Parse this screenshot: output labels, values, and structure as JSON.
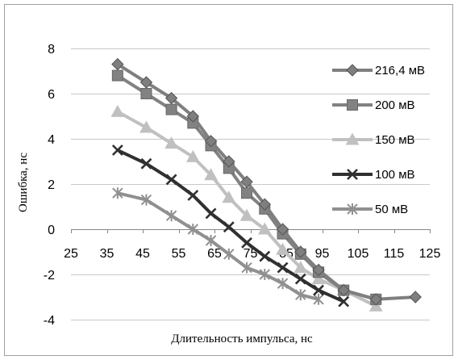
{
  "chart_data": {
    "type": "line",
    "title": "",
    "xlabel": "Длительность импульса, нс",
    "ylabel": "Ошибка, нс",
    "xlim": [
      25,
      125
    ],
    "ylim": [
      -4,
      8
    ],
    "xticks": [
      25,
      35,
      45,
      55,
      65,
      75,
      85,
      95,
      105,
      115,
      125
    ],
    "yticks": [
      -4,
      -2,
      0,
      2,
      4,
      6,
      8
    ],
    "grid": "horizontal",
    "legend": "right",
    "series": [
      {
        "name": "216,4 мВ",
        "color": "#7f7f7f",
        "marker": "diamond",
        "points": [
          [
            38,
            7.3
          ],
          [
            46,
            6.5
          ],
          [
            53,
            5.8
          ],
          [
            59,
            5.0
          ],
          [
            64,
            3.9
          ],
          [
            69,
            3.0
          ],
          [
            74,
            2.1
          ],
          [
            79,
            1.1
          ],
          [
            84,
            0.0
          ],
          [
            89,
            -1.0
          ],
          [
            94,
            -1.8
          ],
          [
            101,
            -2.7
          ],
          [
            110,
            -3.1
          ],
          [
            121,
            -3.0
          ]
        ]
      },
      {
        "name": "200 мВ",
        "color": "#828282",
        "marker": "square",
        "points": [
          [
            38,
            6.8
          ],
          [
            46,
            6.0
          ],
          [
            53,
            5.3
          ],
          [
            59,
            4.7
          ],
          [
            64,
            3.7
          ],
          [
            69,
            2.7
          ],
          [
            74,
            1.6
          ],
          [
            79,
            0.9
          ],
          [
            84,
            -0.2
          ],
          [
            89,
            -1.1
          ],
          [
            94,
            -1.9
          ],
          [
            101,
            -2.7
          ],
          [
            110,
            -3.1
          ]
        ]
      },
      {
        "name": "150 мВ",
        "color": "#c0c0c0",
        "marker": "triangle",
        "points": [
          [
            38,
            5.2
          ],
          [
            46,
            4.5
          ],
          [
            53,
            3.8
          ],
          [
            59,
            3.2
          ],
          [
            64,
            2.4
          ],
          [
            69,
            1.4
          ],
          [
            74,
            0.6
          ],
          [
            79,
            0.0
          ],
          [
            84,
            -0.9
          ],
          [
            89,
            -1.7
          ],
          [
            94,
            -2.2
          ],
          [
            101,
            -2.7
          ],
          [
            110,
            -3.4
          ]
        ]
      },
      {
        "name": "100 мВ",
        "color": "#303030",
        "marker": "x",
        "points": [
          [
            38,
            3.5
          ],
          [
            46,
            2.9
          ],
          [
            53,
            2.2
          ],
          [
            59,
            1.5
          ],
          [
            64,
            0.7
          ],
          [
            69,
            0.1
          ],
          [
            74,
            -0.6
          ],
          [
            79,
            -1.2
          ],
          [
            84,
            -1.7
          ],
          [
            89,
            -2.2
          ],
          [
            94,
            -2.7
          ],
          [
            101,
            -3.2
          ]
        ]
      },
      {
        "name": "50 мВ",
        "color": "#909090",
        "marker": "star",
        "points": [
          [
            38,
            1.6
          ],
          [
            46,
            1.3
          ],
          [
            53,
            0.6
          ],
          [
            59,
            0.0
          ],
          [
            64,
            -0.5
          ],
          [
            69,
            -1.1
          ],
          [
            74,
            -1.7
          ],
          [
            79,
            -2.0
          ],
          [
            84,
            -2.4
          ],
          [
            89,
            -2.9
          ],
          [
            94,
            -3.1
          ]
        ]
      }
    ]
  }
}
